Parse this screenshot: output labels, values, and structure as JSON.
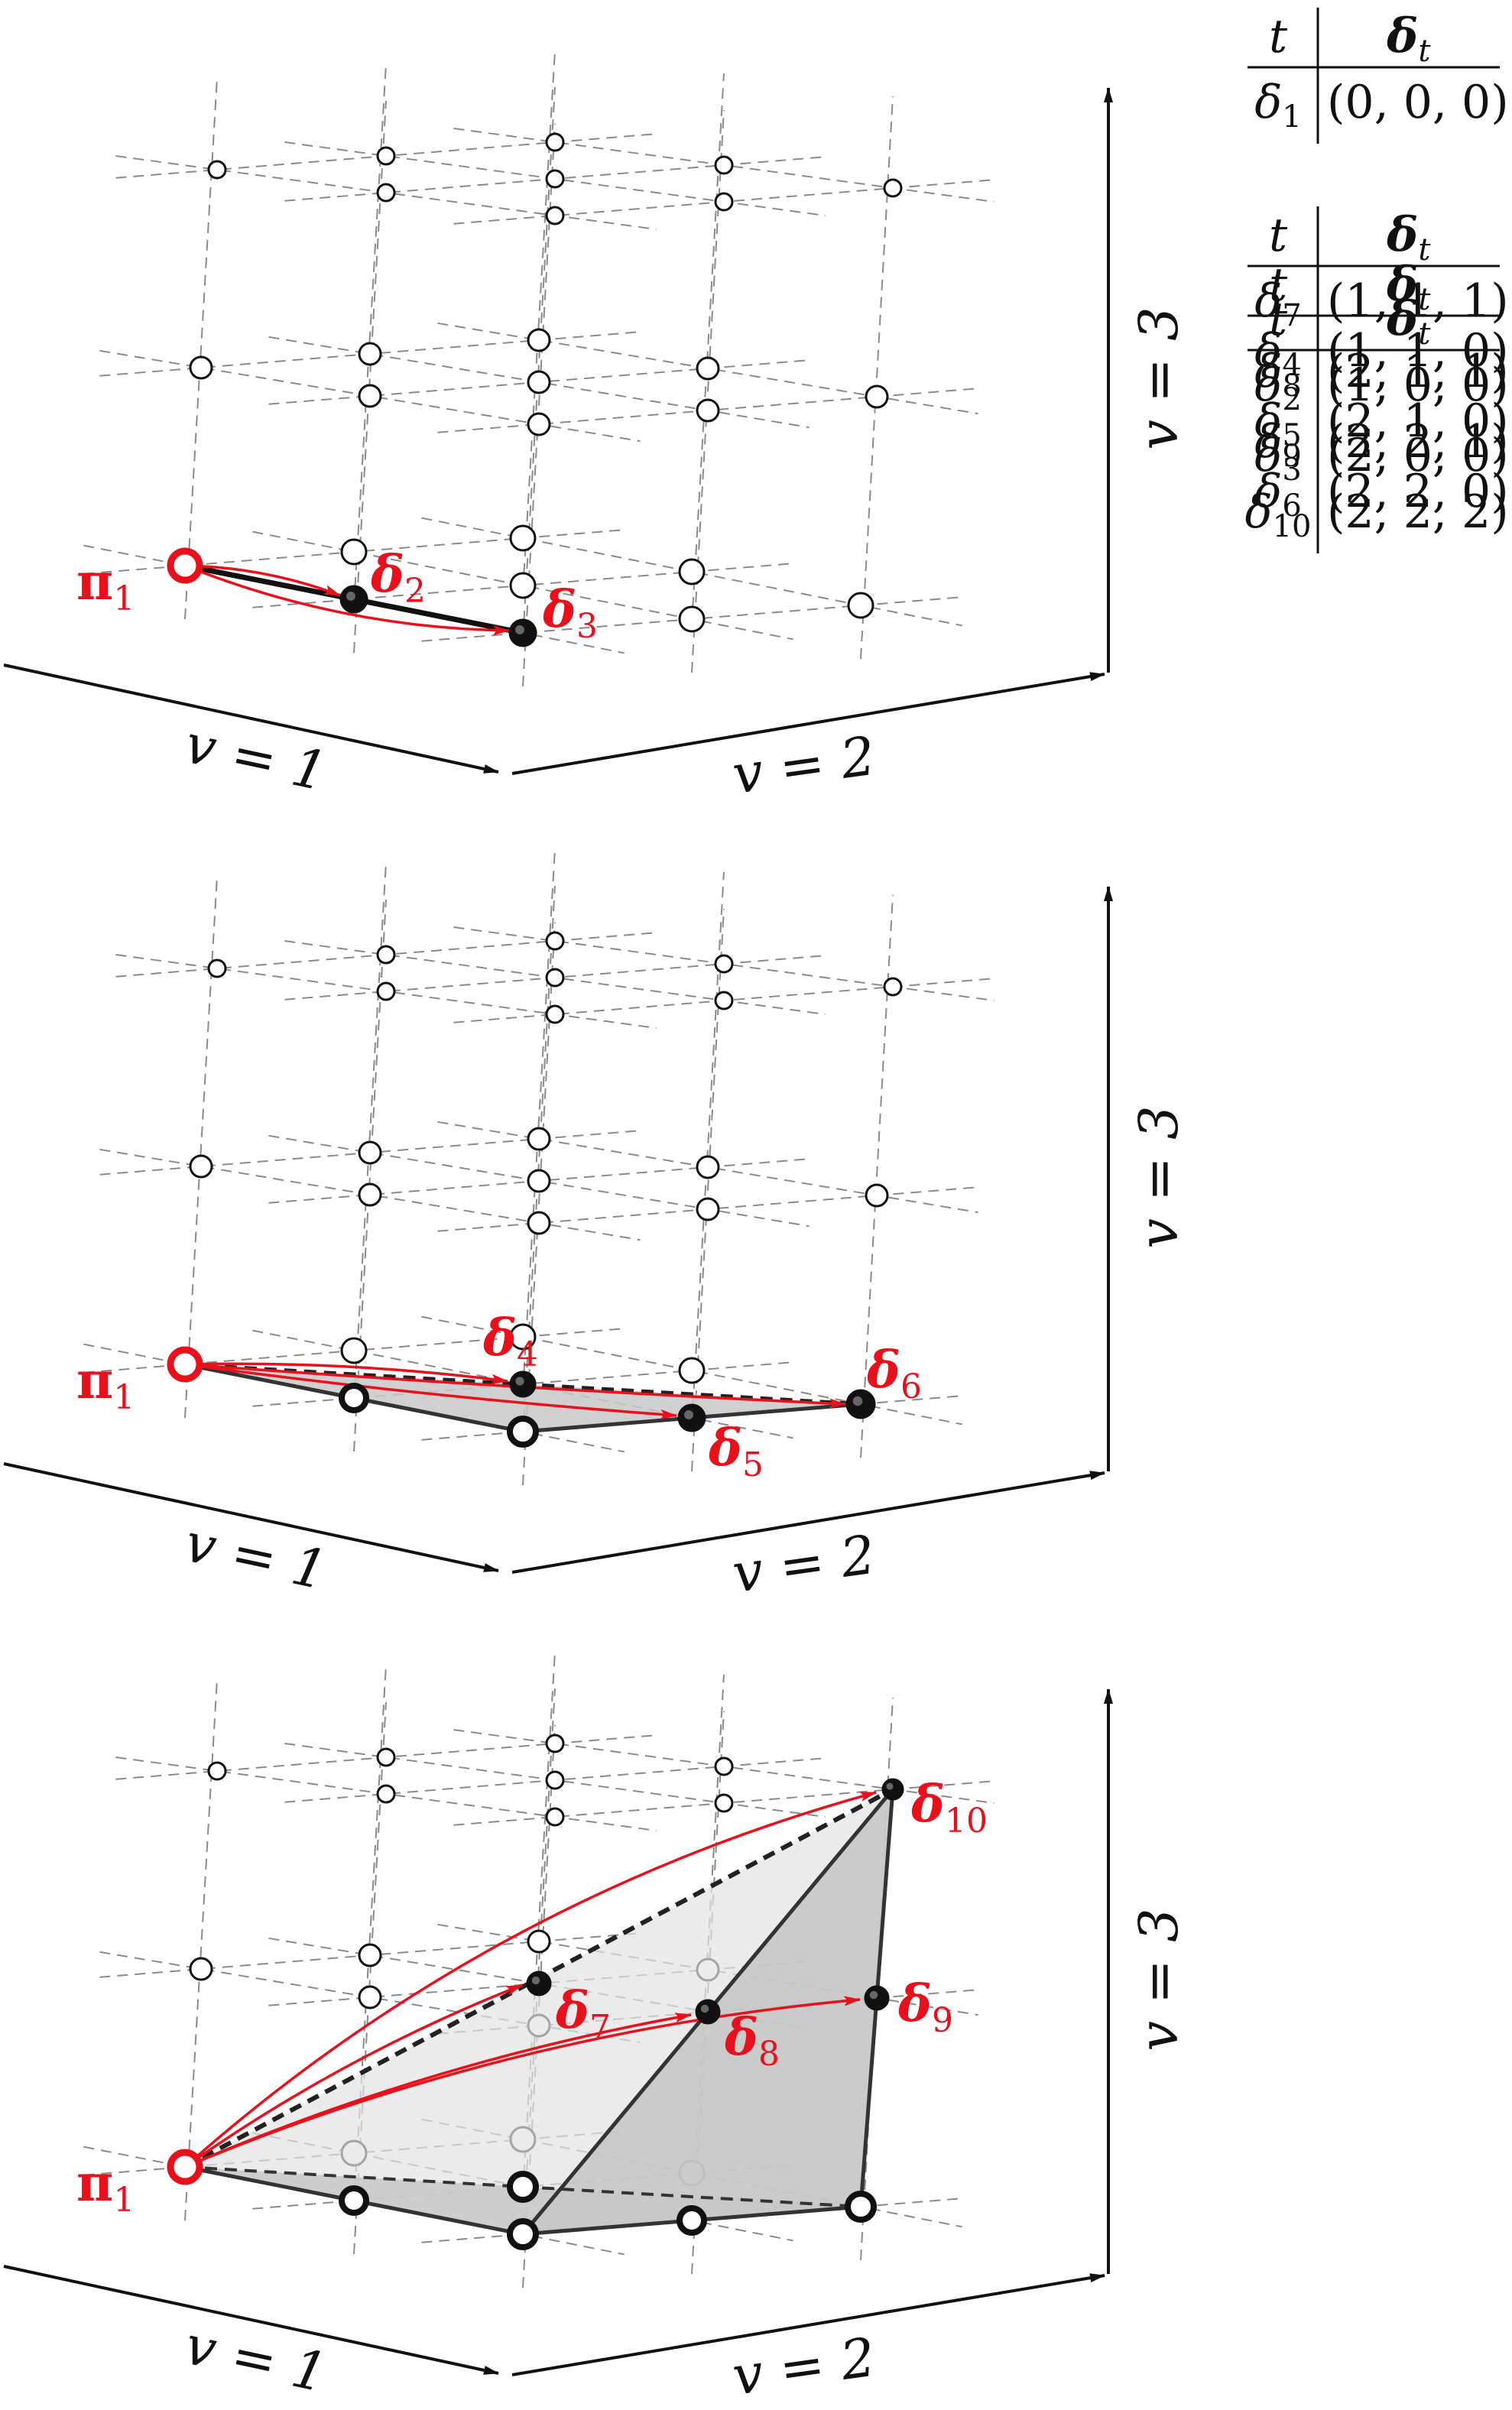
{
  "panels": [
    {
      "id": "panel-1",
      "axis_labels": {
        "v1": "v = 1",
        "v2": "v = 2",
        "v3": "v = 3"
      },
      "origin_label": "π",
      "origin_sub": "1",
      "tables": [
        {
          "header_t": "t",
          "header_delta": "δ",
          "header_delta_sub": "t",
          "rows": [
            {
              "t": "δ",
              "t_sub": "1",
              "value": "(0, 0, 0)"
            }
          ]
        },
        {
          "header_t": "t",
          "header_delta": "δ",
          "header_delta_sub": "t",
          "rows": [
            {
              "t": "δ",
              "t_sub": "2",
              "value": "(1, 0, 0)"
            },
            {
              "t": "δ",
              "t_sub": "3",
              "value": "(2, 0, 0)"
            }
          ]
        }
      ],
      "point_labels": [
        {
          "sym": "δ",
          "sub": "2"
        },
        {
          "sym": "δ",
          "sub": "3"
        }
      ]
    },
    {
      "id": "panel-2",
      "axis_labels": {
        "v1": "v = 1",
        "v2": "v = 2",
        "v3": "v = 3"
      },
      "origin_label": "π",
      "origin_sub": "1",
      "tables": [
        {
          "header_t": "t",
          "header_delta": "δ",
          "header_delta_sub": "t",
          "rows": [
            {
              "t": "δ",
              "t_sub": "4",
              "value": "(1, 1, 0)"
            },
            {
              "t": "δ",
              "t_sub": "5",
              "value": "(2, 1, 0)"
            },
            {
              "t": "δ",
              "t_sub": "6",
              "value": "(2, 2, 0)"
            }
          ]
        }
      ],
      "point_labels": [
        {
          "sym": "δ",
          "sub": "4"
        },
        {
          "sym": "δ",
          "sub": "5"
        },
        {
          "sym": "δ",
          "sub": "6"
        }
      ]
    },
    {
      "id": "panel-3",
      "axis_labels": {
        "v1": "v = 1",
        "v2": "v = 2",
        "v3": "v = 3"
      },
      "origin_label": "π",
      "origin_sub": "1",
      "tables": [
        {
          "header_t": "t",
          "header_delta": "δ",
          "header_delta_sub": "t",
          "rows": [
            {
              "t": "δ",
              "t_sub": "7",
              "value": "(1, 1, 1)"
            },
            {
              "t": "δ",
              "t_sub": "8",
              "value": "(2, 1, 1)"
            },
            {
              "t": "δ",
              "t_sub": "9",
              "value": "(2, 2, 1)"
            },
            {
              "t": "δ",
              "t_sub": "10",
              "value": "(2, 2, 2)"
            }
          ]
        }
      ],
      "point_labels": [
        {
          "sym": "δ",
          "sub": "7"
        },
        {
          "sym": "δ",
          "sub": "8"
        },
        {
          "sym": "δ",
          "sub": "9"
        },
        {
          "sym": "δ",
          "sub": "10"
        }
      ]
    }
  ],
  "colors": {
    "accent": "#e8101a",
    "grid": "#8a8a8a",
    "ink": "#111111",
    "fill_dark": "#c8c8c8",
    "fill_light": "#e2e2e2"
  }
}
